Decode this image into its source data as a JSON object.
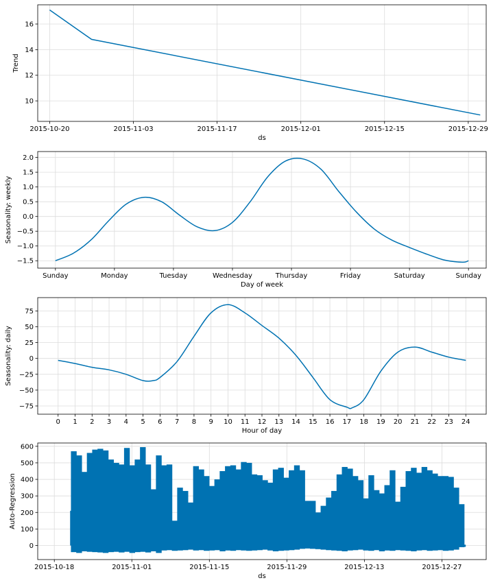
{
  "chart_data": [
    {
      "type": "line",
      "panel": "trend",
      "xlabel": "ds",
      "ylabel": "Trend",
      "x_axis": "date",
      "xlim": [
        "2015-10-18",
        "2016-01-01"
      ],
      "ylim": [
        8.4,
        17.5
      ],
      "x_ticks": [
        "2015-10-20",
        "2015-11-03",
        "2015-11-17",
        "2015-12-01",
        "2015-12-15",
        "2015-12-29"
      ],
      "y_ticks": [
        10,
        12,
        14,
        16
      ],
      "grid": true,
      "color": "#0072B2",
      "x": [
        "2015-10-20",
        "2015-10-27",
        "2015-12-31"
      ],
      "y": [
        17.1,
        14.8,
        8.9
      ]
    },
    {
      "type": "line",
      "panel": "weekly",
      "xlabel": "Day of week",
      "ylabel": "Seasonality: weekly",
      "xlim": [
        -0.3,
        7.3
      ],
      "ylim": [
        -1.75,
        2.2
      ],
      "x_ticks": [
        "Sunday",
        "Monday",
        "Tuesday",
        "Wednesday",
        "Thursday",
        "Friday",
        "Saturday",
        "Sunday"
      ],
      "y_ticks": [
        -1.5,
        -1.0,
        -0.5,
        0.0,
        0.5,
        1.0,
        1.5,
        2.0
      ],
      "y_tick_labels": [
        "−1.5",
        "−1.0",
        "−0.5",
        "0.0",
        "0.5",
        "1.0",
        "1.5",
        "2.0"
      ],
      "grid": true,
      "color": "#0072B2",
      "x": [
        0,
        0.3,
        0.6,
        0.9,
        1.2,
        1.5,
        1.8,
        2.1,
        2.4,
        2.7,
        3.0,
        3.3,
        3.6,
        3.9,
        4.2,
        4.5,
        4.8,
        5.1,
        5.4,
        5.7,
        6.0,
        6.3,
        6.6,
        6.9,
        7.0
      ],
      "y": [
        -1.5,
        -1.25,
        -0.8,
        -0.15,
        0.42,
        0.65,
        0.5,
        0.05,
        -0.35,
        -0.48,
        -0.2,
        0.5,
        1.35,
        1.88,
        1.95,
        1.6,
        0.85,
        0.15,
        -0.42,
        -0.8,
        -1.05,
        -1.28,
        -1.48,
        -1.55,
        -1.5
      ]
    },
    {
      "type": "line",
      "panel": "daily",
      "xlabel": "Hour of day",
      "ylabel": "Seasonality: daily",
      "xlim": [
        -1.2,
        25.2
      ],
      "ylim": [
        -88,
        96
      ],
      "x_ticks": [
        0,
        1,
        2,
        3,
        4,
        5,
        6,
        7,
        8,
        9,
        10,
        11,
        12,
        13,
        14,
        15,
        16,
        17,
        18,
        19,
        20,
        21,
        22,
        23,
        24
      ],
      "y_ticks": [
        -75,
        -50,
        -25,
        0,
        25,
        50,
        75
      ],
      "y_tick_labels": [
        "−75",
        "−50",
        "−25",
        "0",
        "25",
        "50",
        "75"
      ],
      "grid": true,
      "color": "#0072B2",
      "x": [
        0,
        1,
        2,
        3,
        4,
        5,
        5.6,
        6,
        7,
        8,
        9,
        10,
        11,
        12,
        13,
        14,
        15,
        16,
        17,
        17.3,
        18,
        19,
        20,
        21,
        22,
        23,
        24
      ],
      "y": [
        -3,
        -8,
        -14,
        -18,
        -25,
        -35,
        -35,
        -30,
        -5,
        35,
        72,
        85,
        72,
        52,
        32,
        5,
        -30,
        -65,
        -77,
        -78,
        -65,
        -20,
        10,
        18,
        10,
        2,
        -3
      ]
    },
    {
      "type": "bar",
      "panel": "ar",
      "xlabel": "ds",
      "ylabel": "Auto-Regression",
      "x_axis": "date",
      "xlim": [
        "2015-10-15",
        "2016-01-04"
      ],
      "ylim": [
        -85,
        620
      ],
      "x_ticks": [
        "2015-10-18",
        "2015-11-01",
        "2015-11-15",
        "2015-11-29",
        "2015-12-13",
        "2015-12-27"
      ],
      "y_ticks": [
        0,
        100,
        200,
        300,
        400,
        500,
        600
      ],
      "grid": true,
      "color": "#0072B2",
      "start_date": "2015-10-21",
      "end_date": "2015-12-31",
      "highs": [
        570,
        545,
        445,
        560,
        580,
        585,
        575,
        520,
        500,
        490,
        590,
        485,
        520,
        595,
        490,
        340,
        545,
        485,
        490,
        150,
        350,
        330,
        260,
        480,
        460,
        420,
        360,
        400,
        450,
        480,
        485,
        460,
        505,
        500,
        430,
        425,
        395,
        380,
        460,
        470,
        410,
        455,
        485,
        455,
        270,
        270,
        200,
        240,
        290,
        330,
        430,
        475,
        465,
        420,
        395,
        285,
        425,
        335,
        315,
        365,
        455,
        265,
        355,
        450,
        470,
        440,
        475,
        455,
        435,
        420,
        420,
        415,
        350,
        250
      ],
      "lows": [
        -40,
        -45,
        -35,
        -38,
        -40,
        -42,
        -45,
        -40,
        -38,
        -42,
        -38,
        -45,
        -40,
        -38,
        -42,
        -35,
        -45,
        -30,
        -28,
        -32,
        -30,
        -28,
        -25,
        -30,
        -28,
        -32,
        -30,
        -28,
        -35,
        -30,
        -32,
        -28,
        -30,
        -32,
        -30,
        -28,
        -25,
        -30,
        -35,
        -32,
        -30,
        -28,
        -25,
        -20,
        -18,
        -20,
        -22,
        -25,
        -28,
        -30,
        -32,
        -35,
        -30,
        -28,
        -25,
        -30,
        -32,
        -28,
        -35,
        -30,
        -32,
        -28,
        -30,
        -32,
        -35,
        -30,
        -28,
        -32,
        -30,
        -28,
        -32,
        -30,
        -25,
        -10
      ]
    }
  ]
}
